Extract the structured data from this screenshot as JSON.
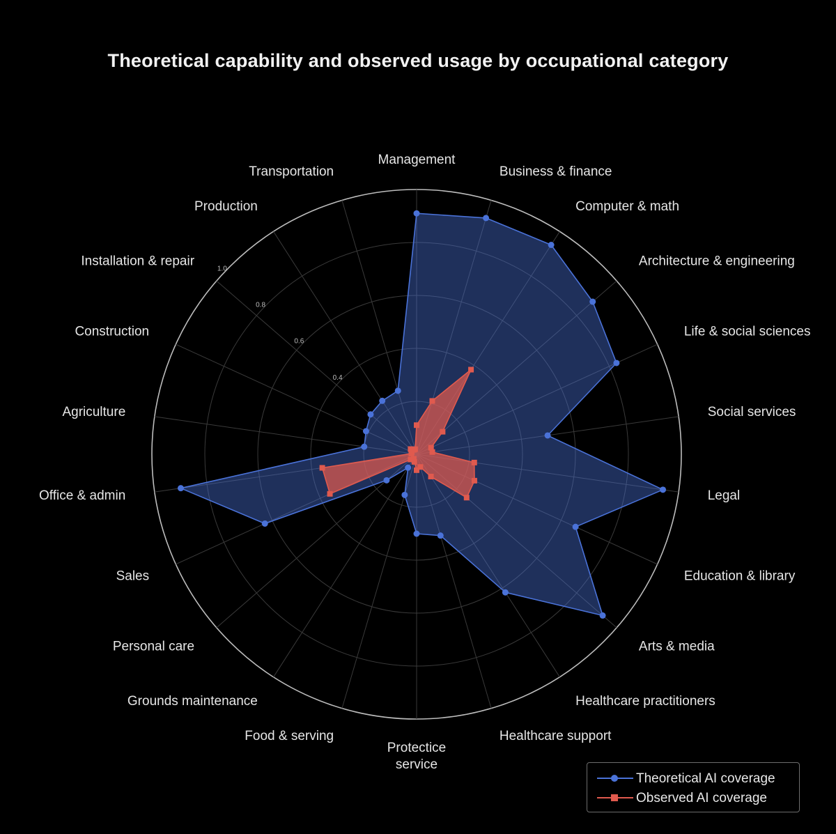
{
  "chart_data": {
    "type": "radar",
    "title": "Theoretical capability and observed usage by occupational category",
    "categories": [
      "Management",
      "Business & finance",
      "Computer & math",
      "Architecture & engineering",
      "Life & social sciences",
      "Social services",
      "Legal",
      "Education & library",
      "Arts & media",
      "Healthcare practitioners",
      "Healthcare support",
      "Protectice\nservice",
      "Food & serving",
      "Grounds maintenance",
      "Personal care",
      "Sales",
      "Office & admin",
      "Agriculture",
      "Construction",
      "Installation & repair",
      "Production",
      "Transportation"
    ],
    "radial_ticks": [
      "0.4",
      "0.6",
      "0.8",
      "1.0"
    ],
    "rlim": [
      0,
      1.0
    ],
    "series": [
      {
        "name": "Theoretical AI coverage",
        "color": "#4a72d8",
        "marker": "circle",
        "values": [
          0.91,
          0.93,
          0.94,
          0.88,
          0.83,
          0.5,
          0.94,
          0.66,
          0.93,
          0.62,
          0.32,
          0.3,
          0.16,
          0.06,
          0.15,
          0.63,
          0.9,
          0.2,
          0.21,
          0.23,
          0.24,
          0.25
        ]
      },
      {
        "name": "Observed AI coverage",
        "color": "#e05a4e",
        "marker": "square",
        "values": [
          0.11,
          0.21,
          0.38,
          0.13,
          0.06,
          0.06,
          0.22,
          0.24,
          0.25,
          0.1,
          0.05,
          0.06,
          0.03,
          0.02,
          0.03,
          0.36,
          0.36,
          0.02,
          0.02,
          0.03,
          0.02,
          0.02
        ]
      }
    ]
  }
}
